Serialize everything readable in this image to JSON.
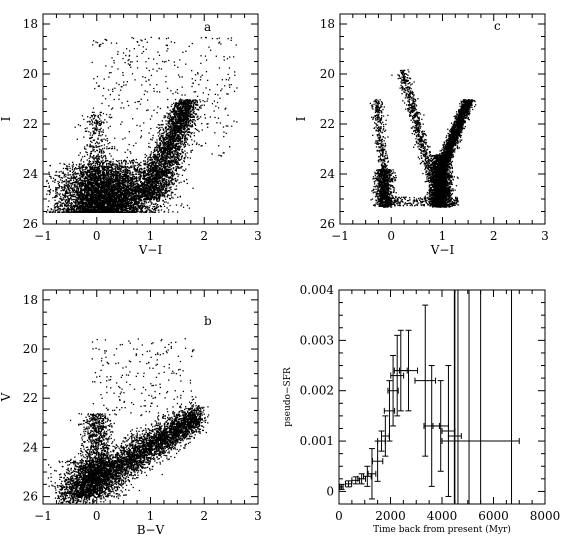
{
  "chart_data": [
    {
      "id": "a",
      "type": "scatter",
      "panel_label": "a",
      "xlabel": "V−I",
      "ylabel": "I",
      "xlim": [
        -1,
        3
      ],
      "ylim": [
        26,
        17.6
      ],
      "y_inverted": true,
      "xticks": [
        -1,
        0,
        1,
        2,
        3
      ],
      "yticks": [
        18,
        20,
        22,
        24,
        26
      ],
      "x_tick_labels": [
        "−1",
        "0",
        "1",
        "2",
        "3"
      ],
      "y_tick_labels": [
        "18",
        "20",
        "22",
        "24",
        "26"
      ],
      "marker": "dot",
      "density_regions": [
        {
          "desc": "main sequence / red giant branch clump",
          "x_range": [
            -0.2,
            1.6
          ],
          "y_range": [
            23.5,
            25.5
          ]
        },
        {
          "desc": "red giant branch",
          "x_range": [
            0.9,
            1.7
          ],
          "y_range": [
            21,
            24
          ]
        },
        {
          "desc": "sparse upper stars",
          "x_range": [
            -0.1,
            2.5
          ],
          "y_range": [
            18.5,
            21.5
          ]
        }
      ]
    },
    {
      "id": "c",
      "type": "scatter",
      "panel_label": "c",
      "xlabel": "V−I",
      "ylabel": "I",
      "xlim": [
        -1,
        3
      ],
      "ylim": [
        26,
        17.6
      ],
      "y_inverted": true,
      "xticks": [
        -1,
        0,
        1,
        2,
        3
      ],
      "yticks": [
        18,
        20,
        22,
        24,
        26
      ],
      "x_tick_labels": [
        "−1",
        "0",
        "1",
        "2",
        "3"
      ],
      "y_tick_labels": [
        "18",
        "20",
        "22",
        "24",
        "26"
      ],
      "marker": "dot",
      "density_regions": [
        {
          "desc": "blue plume",
          "x_range": [
            -0.35,
            0.05
          ],
          "y_range": [
            23.8,
            25.3
          ]
        },
        {
          "desc": "red clump",
          "x_range": [
            0.75,
            1.15
          ],
          "y_range": [
            23.2,
            25.3
          ]
        },
        {
          "desc": "red giant branch",
          "x_range": [
            0.85,
            1.55
          ],
          "y_range": [
            21,
            23.5
          ]
        },
        {
          "desc": "blue loop branch",
          "x_range": [
            0.2,
            0.8
          ],
          "y_range": [
            19.8,
            24.5
          ]
        }
      ]
    },
    {
      "id": "b",
      "type": "scatter",
      "panel_label": "b",
      "xlabel": "B−V",
      "ylabel": "V",
      "xlim": [
        -1,
        3
      ],
      "ylim": [
        26.3,
        17.6
      ],
      "y_inverted": true,
      "xticks": [
        -1,
        0,
        1,
        2,
        3
      ],
      "yticks": [
        18,
        20,
        22,
        24,
        26
      ],
      "x_tick_labels": [
        "−1",
        "0",
        "1",
        "2",
        "3"
      ],
      "y_tick_labels": [
        "18",
        "20",
        "22",
        "24",
        "26"
      ],
      "marker": "dot",
      "density_regions": [
        {
          "desc": "main band",
          "x_range": [
            -0.6,
            2.0
          ],
          "y_range": [
            22.5,
            26
          ]
        },
        {
          "desc": "blue plume",
          "x_range": [
            -0.2,
            0.3
          ],
          "y_range": [
            22.5,
            25
          ]
        },
        {
          "desc": "sparse upper stars",
          "x_range": [
            -0.1,
            1.8
          ],
          "y_range": [
            19.5,
            22.5
          ]
        }
      ]
    },
    {
      "id": "sfr",
      "type": "scatter",
      "title": "",
      "xlabel": "Time back from present (Myr)",
      "ylabel": "pseudo−SFR",
      "xlim": [
        0,
        8000
      ],
      "ylim": [
        -0.00025,
        0.004
      ],
      "xticks": [
        0,
        2000,
        4000,
        6000,
        8000
      ],
      "yticks": [
        0,
        0.001,
        0.002,
        0.003,
        0.004
      ],
      "x_tick_labels": [
        "0",
        "2000",
        "4000",
        "6000",
        "8000"
      ],
      "y_tick_labels": [
        "0",
        "0.001",
        "0.002",
        "0.003",
        "0.004"
      ],
      "points": [
        {
          "x": 100,
          "y": 9e-05,
          "xerr": 60,
          "yerr": 5e-05
        },
        {
          "x": 370,
          "y": 0.00015,
          "xerr": 120,
          "yerr": 6e-05
        },
        {
          "x": 650,
          "y": 0.00022,
          "xerr": 150,
          "yerr": 7e-05
        },
        {
          "x": 880,
          "y": 0.00025,
          "xerr": 150,
          "yerr": 0.0001
        },
        {
          "x": 1100,
          "y": 0.0003,
          "xerr": 150,
          "yerr": 0.0002
        },
        {
          "x": 1280,
          "y": 0.00035,
          "xerr": 150,
          "yerr": 0.0005
        },
        {
          "x": 1500,
          "y": 0.0006,
          "xerr": 200,
          "yerr": 0.0004
        },
        {
          "x": 1650,
          "y": 0.001,
          "xerr": 150,
          "yerr": 0.0002
        },
        {
          "x": 1800,
          "y": 0.0011,
          "xerr": 150,
          "yerr": 0.0004
        },
        {
          "x": 1960,
          "y": 0.0016,
          "xerr": 200,
          "yerr": 0.0006
        },
        {
          "x": 2100,
          "y": 0.002,
          "xerr": 200,
          "yerr": 0.0007
        },
        {
          "x": 2260,
          "y": 0.0023,
          "xerr": 250,
          "yerr": 0.0008
        },
        {
          "x": 2400,
          "y": 0.0024,
          "xerr": 250,
          "yerr": 0.0008
        },
        {
          "x": 2700,
          "y": 0.0024,
          "xerr": 350,
          "yerr": 0.0008
        },
        {
          "x": 3350,
          "y": 0.0022,
          "xerr": 400,
          "yerr": 0.0015
        },
        {
          "x": 3600,
          "y": 0.0013,
          "xerr": 300,
          "yerr": 0.0012
        },
        {
          "x": 3950,
          "y": 0.0013,
          "xerr": 300,
          "yerr": 0.0009
        },
        {
          "x": 4250,
          "y": 0.0012,
          "xerr": 250,
          "yerr": 0.0013
        },
        {
          "x": 4500,
          "y": 0.0011,
          "xerr": 250,
          "yerr": 0.0035
        },
        {
          "x": 5500,
          "y": 0.001,
          "xerr": 1500,
          "yerr": 0.0045
        }
      ],
      "vertical_lines": [
        4480,
        4620,
        5050,
        6700
      ]
    }
  ]
}
